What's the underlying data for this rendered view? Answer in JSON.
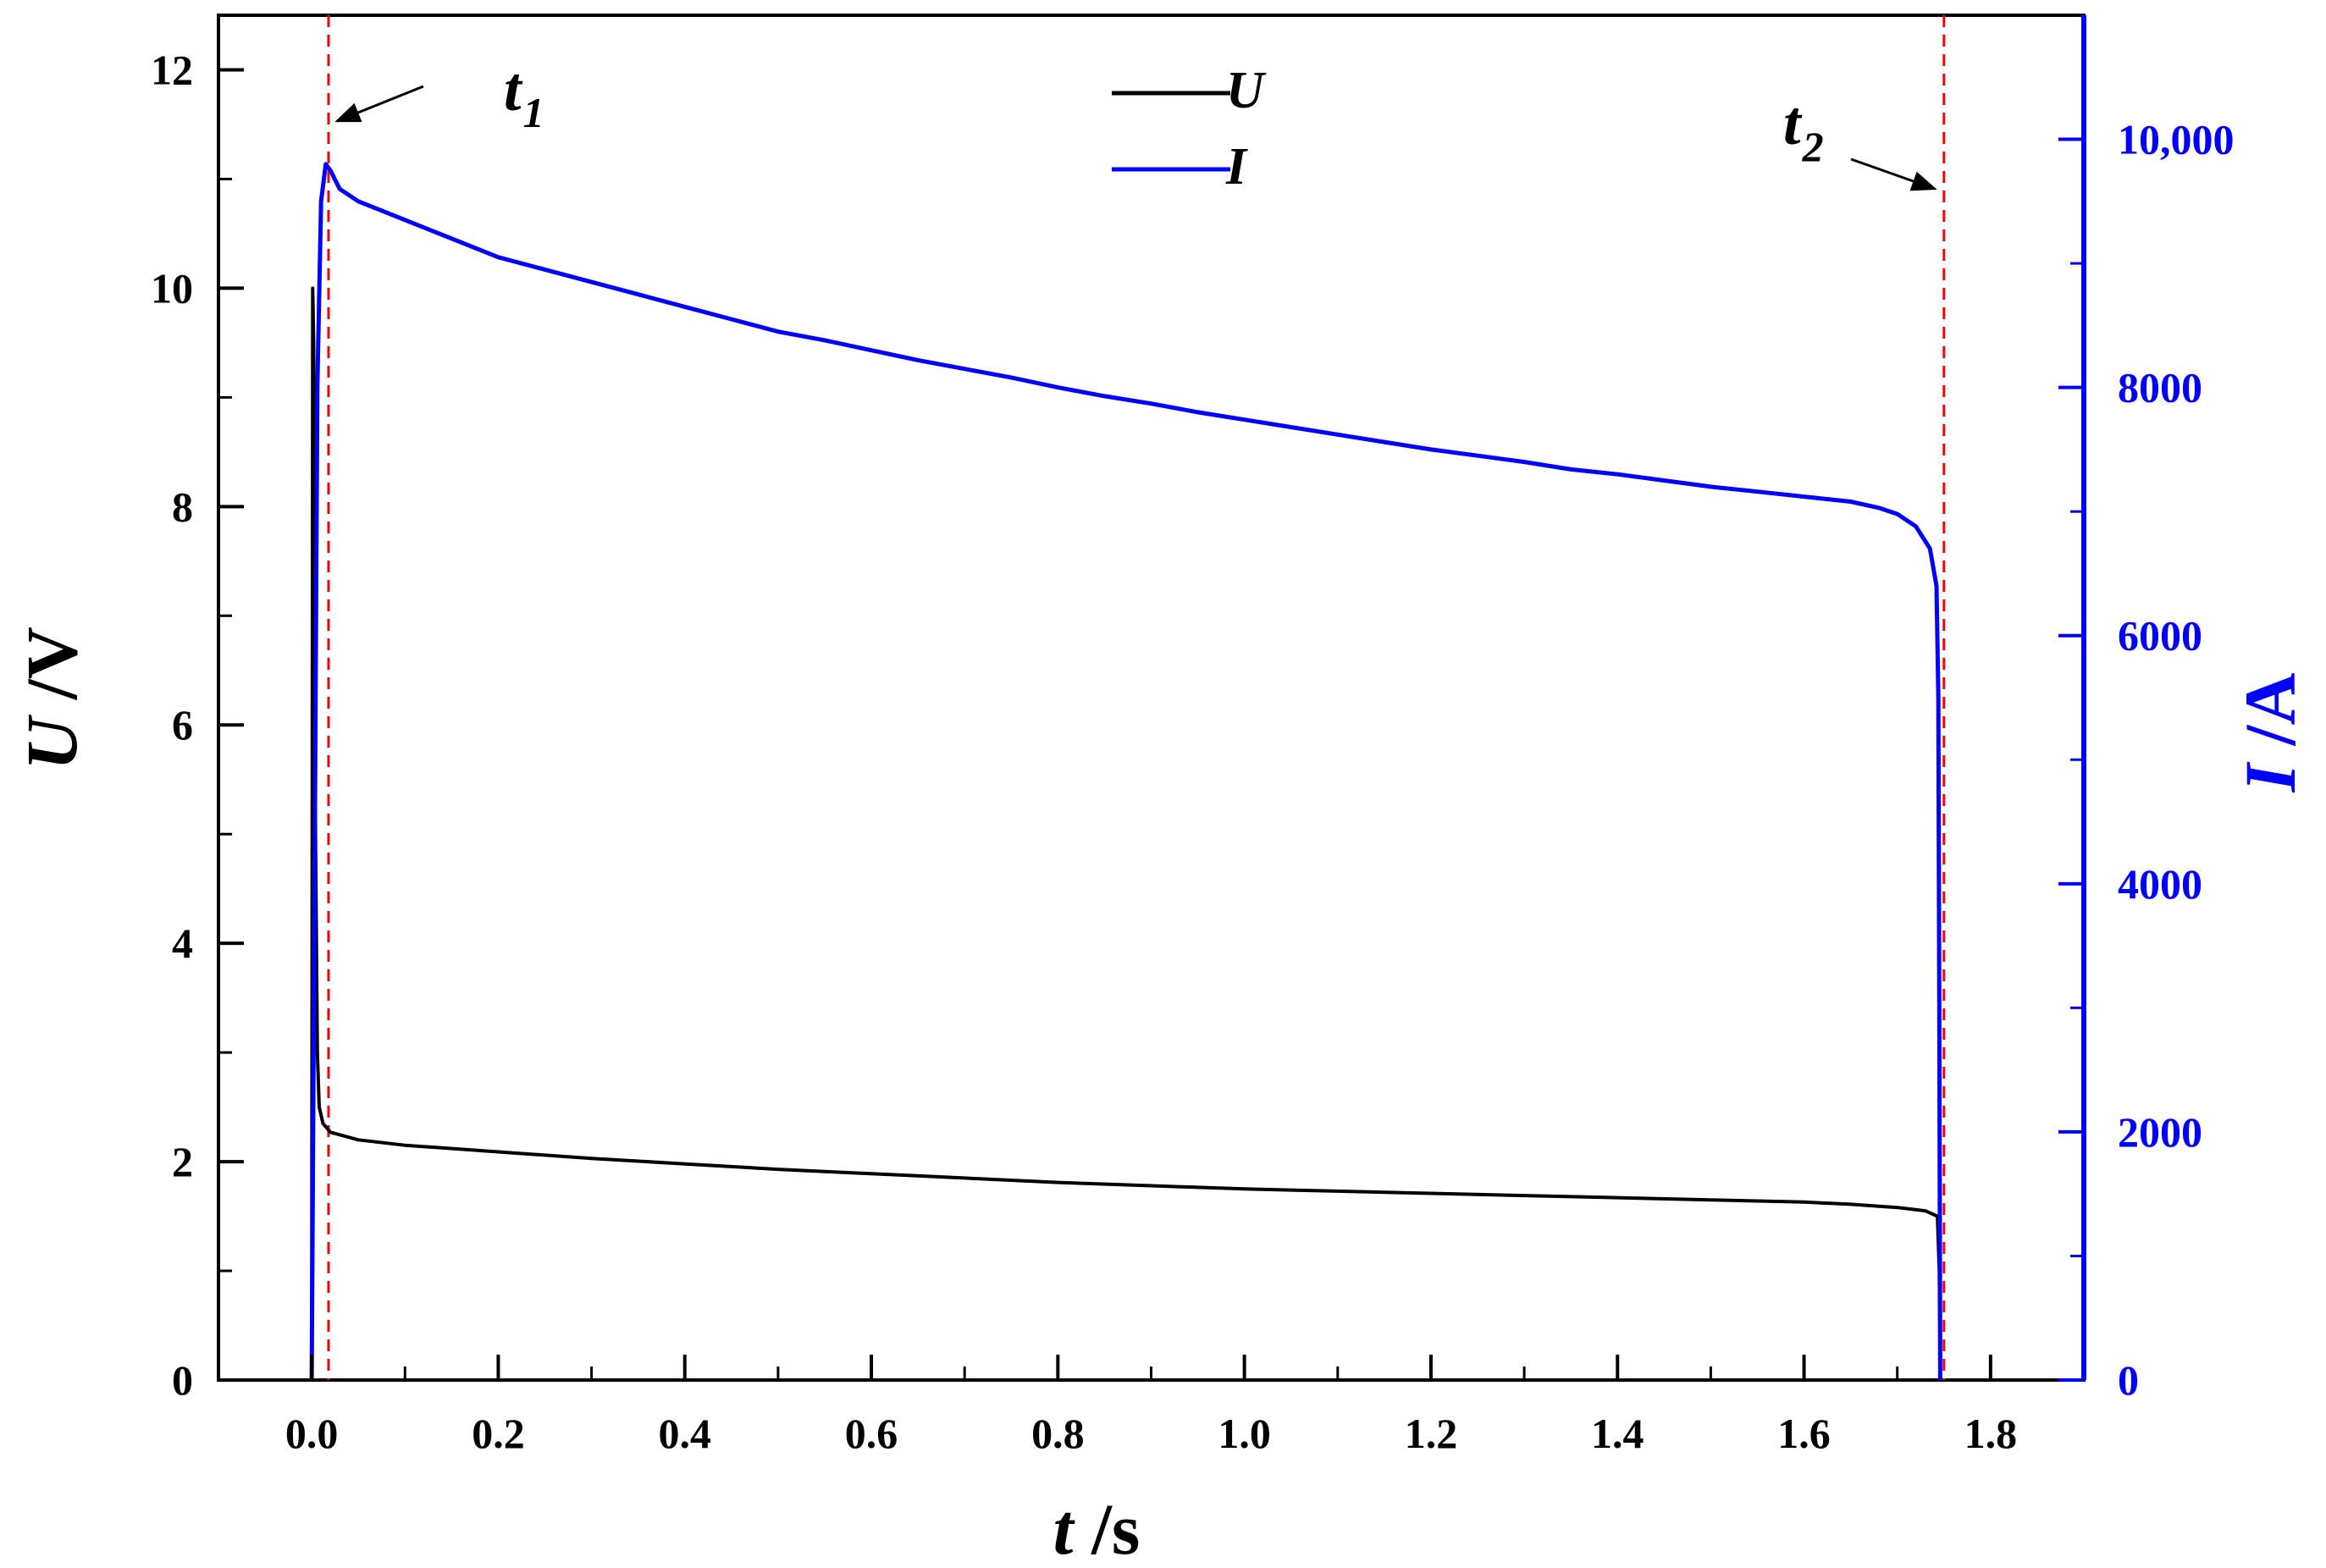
{
  "chart_data": {
    "type": "line",
    "xlabel": {
      "symbol": "t",
      "unit": " /s"
    },
    "ylabel_left": {
      "symbol": "U",
      "unit": " /V"
    },
    "ylabel_right": {
      "symbol": "I",
      "unit": " /A"
    },
    "xlim": [
      -0.1,
      1.9
    ],
    "ylim_left": [
      0,
      12.5
    ],
    "ylim_right": [
      0,
      11000
    ],
    "x_ticks": [
      0.0,
      0.2,
      0.4,
      0.6,
      0.8,
      1.0,
      1.2,
      1.4,
      1.6,
      1.8
    ],
    "x_tick_labels": [
      "0.0",
      "0.2",
      "0.4",
      "0.6",
      "0.8",
      "1.0",
      "1.2",
      "1.4",
      "1.6",
      "1.8"
    ],
    "y_left_ticks": [
      0,
      2,
      4,
      6,
      8,
      10,
      12
    ],
    "y_left_tick_labels": [
      "0",
      "2",
      "4",
      "6",
      "8",
      "10",
      "12"
    ],
    "y_right_ticks": [
      0,
      2000,
      4000,
      6000,
      8000,
      10000
    ],
    "y_right_tick_labels": [
      "0",
      "2000",
      "4000",
      "6000",
      "8000",
      "10,000"
    ],
    "grid": false,
    "legend_position": "top-center",
    "series": [
      {
        "name": "U",
        "axis": "left",
        "color": "#000000",
        "points": [
          [
            0.0,
            0.0
          ],
          [
            0.001,
            10.0
          ],
          [
            0.002,
            9.5
          ],
          [
            0.004,
            5.0
          ],
          [
            0.006,
            3.0
          ],
          [
            0.008,
            2.5
          ],
          [
            0.012,
            2.35
          ],
          [
            0.02,
            2.27
          ],
          [
            0.05,
            2.2
          ],
          [
            0.1,
            2.15
          ],
          [
            0.2,
            2.09
          ],
          [
            0.3,
            2.03
          ],
          [
            0.4,
            1.98
          ],
          [
            0.5,
            1.93
          ],
          [
            0.6,
            1.89
          ],
          [
            0.7,
            1.85
          ],
          [
            0.8,
            1.81
          ],
          [
            0.9,
            1.78
          ],
          [
            1.0,
            1.75
          ],
          [
            1.1,
            1.73
          ],
          [
            1.2,
            1.71
          ],
          [
            1.3,
            1.69
          ],
          [
            1.4,
            1.67
          ],
          [
            1.5,
            1.65
          ],
          [
            1.6,
            1.63
          ],
          [
            1.65,
            1.61
          ],
          [
            1.7,
            1.58
          ],
          [
            1.73,
            1.55
          ],
          [
            1.743,
            1.5
          ],
          [
            1.745,
            1.0
          ],
          [
            1.746,
            0.0
          ]
        ]
      },
      {
        "name": "I",
        "axis": "right",
        "color": "#0000ff",
        "points": [
          [
            0.0,
            0.0
          ],
          [
            0.003,
            4000
          ],
          [
            0.006,
            8000
          ],
          [
            0.01,
            9500
          ],
          [
            0.015,
            9800
          ],
          [
            0.02,
            9750
          ],
          [
            0.03,
            9600
          ],
          [
            0.05,
            9500
          ],
          [
            0.1,
            9350
          ],
          [
            0.15,
            9200
          ],
          [
            0.2,
            9050
          ],
          [
            0.25,
            8950
          ],
          [
            0.3,
            8850
          ],
          [
            0.35,
            8750
          ],
          [
            0.4,
            8650
          ],
          [
            0.45,
            8550
          ],
          [
            0.5,
            8450
          ],
          [
            0.55,
            8380
          ],
          [
            0.6,
            8300
          ],
          [
            0.65,
            8220
          ],
          [
            0.7,
            8150
          ],
          [
            0.75,
            8080
          ],
          [
            0.8,
            8000
          ],
          [
            0.85,
            7930
          ],
          [
            0.9,
            7870
          ],
          [
            0.95,
            7800
          ],
          [
            1.0,
            7740
          ],
          [
            1.05,
            7680
          ],
          [
            1.1,
            7620
          ],
          [
            1.15,
            7560
          ],
          [
            1.2,
            7500
          ],
          [
            1.25,
            7450
          ],
          [
            1.3,
            7400
          ],
          [
            1.35,
            7340
          ],
          [
            1.4,
            7300
          ],
          [
            1.45,
            7250
          ],
          [
            1.5,
            7200
          ],
          [
            1.55,
            7160
          ],
          [
            1.6,
            7120
          ],
          [
            1.65,
            7080
          ],
          [
            1.68,
            7030
          ],
          [
            1.7,
            6980
          ],
          [
            1.72,
            6880
          ],
          [
            1.735,
            6700
          ],
          [
            1.742,
            6400
          ],
          [
            1.744,
            5500
          ],
          [
            1.745,
            3000
          ],
          [
            1.746,
            0
          ]
        ]
      }
    ],
    "markers": [
      {
        "label": "t",
        "sub": "1",
        "x": 0.018,
        "style": "dashed",
        "color": "#ff0000"
      },
      {
        "label": "t",
        "sub": "2",
        "x": 1.75,
        "style": "dashed",
        "color": "#ff0000"
      }
    ]
  }
}
